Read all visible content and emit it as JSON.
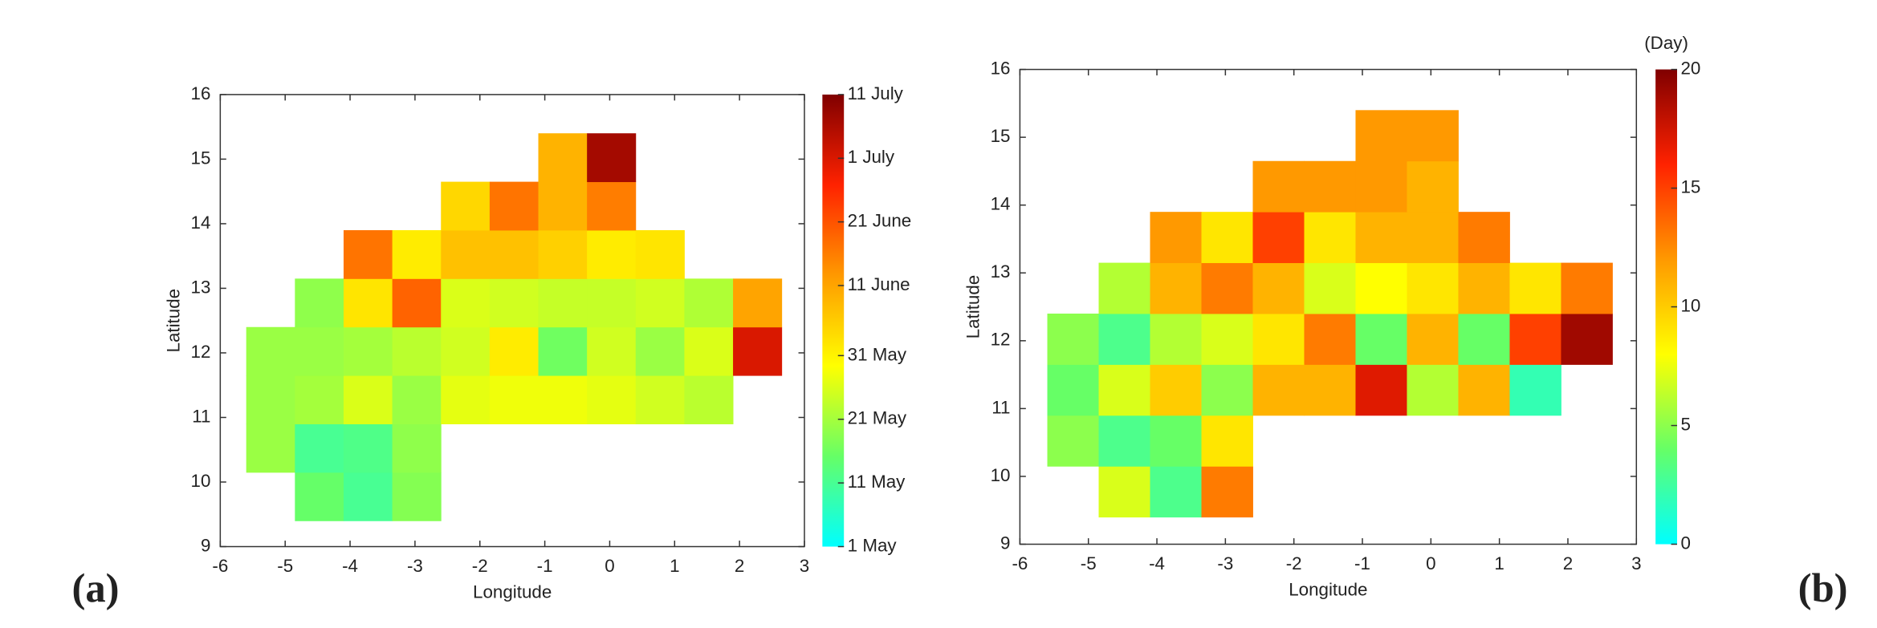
{
  "chart_data": [
    {
      "type": "heatmap",
      "panel_label": "(a)",
      "xlabel": "Longitude",
      "ylabel": "Latitude",
      "xlim": [
        -6,
        3
      ],
      "xticks": [
        -6,
        -5,
        -4,
        -3,
        -2,
        -1,
        0,
        1,
        2,
        3
      ],
      "ylim": [
        9,
        16
      ],
      "yticks": [
        9,
        10,
        11,
        12,
        13,
        14,
        15,
        16
      ],
      "x_edges": [
        -5.6,
        -4.85,
        -4.1,
        -3.35,
        -2.6,
        -1.85,
        -1.1,
        -0.35,
        0.4,
        1.15,
        1.9,
        2.65
      ],
      "y_edges": [
        9.4,
        10.15,
        10.9,
        11.65,
        12.4,
        13.15,
        13.9,
        14.65,
        15.4
      ],
      "z": [
        [
          null,
          135,
          131,
          138,
          null,
          null,
          null,
          null,
          null,
          null,
          null
        ],
        [
          140,
          131,
          132,
          139,
          null,
          null,
          null,
          null,
          null,
          null,
          null
        ],
        [
          140,
          141,
          146,
          140,
          147,
          148,
          148,
          147,
          145,
          143,
          null
        ],
        [
          140,
          140,
          141,
          143,
          145,
          152,
          136,
          145,
          140,
          146,
          182
        ],
        [
          null,
          139,
          153,
          170,
          146,
          145,
          144,
          144,
          145,
          142,
          162
        ],
        [
          null,
          null,
          168,
          152,
          158,
          158,
          156,
          152,
          153,
          null,
          null
        ],
        [
          null,
          null,
          null,
          null,
          155,
          168,
          160,
          167,
          null,
          null,
          null
        ],
        [
          null,
          null,
          null,
          null,
          null,
          null,
          160,
          188,
          null,
          null,
          null
        ]
      ],
      "zlim": [
        121,
        192
      ],
      "zticks": [
        {
          "value": 121,
          "label": "1 May"
        },
        {
          "value": 131,
          "label": "11 May"
        },
        {
          "value": 141,
          "label": "21 May"
        },
        {
          "value": 151,
          "label": "31 May"
        },
        {
          "value": 162,
          "label": "11 June"
        },
        {
          "value": 172,
          "label": "21 June"
        },
        {
          "value": 182,
          "label": "1 July"
        },
        {
          "value": 192,
          "label": "11 July"
        }
      ],
      "colormap": [
        "#00ffff",
        "#66ff66",
        "#ffff00",
        "#ff9900",
        "#ff2200",
        "#800000"
      ]
    },
    {
      "type": "heatmap",
      "panel_label": "(b)",
      "xlabel": "Longitude",
      "ylabel": "Latitude",
      "colorbar_label": "(Day)",
      "xlim": [
        -6,
        3
      ],
      "xticks": [
        -6,
        -5,
        -4,
        -3,
        -2,
        -1,
        0,
        1,
        2,
        3
      ],
      "ylim": [
        9,
        16
      ],
      "yticks": [
        9,
        10,
        11,
        12,
        13,
        14,
        15,
        16
      ],
      "x_edges": [
        -5.6,
        -4.85,
        -4.1,
        -3.35,
        -2.6,
        -1.85,
        -1.1,
        -0.35,
        0.4,
        1.15,
        1.9,
        2.65
      ],
      "y_edges": [
        9.4,
        10.15,
        10.9,
        11.65,
        12.4,
        13.15,
        13.9,
        14.65,
        15.4
      ],
      "z": [
        [
          null,
          7,
          3,
          13,
          null,
          null,
          null,
          null,
          null,
          null,
          null
        ],
        [
          5,
          3,
          4,
          9,
          null,
          null,
          null,
          null,
          null,
          null,
          null
        ],
        [
          4,
          7,
          10,
          5,
          11,
          11,
          17,
          6,
          11,
          2,
          null
        ],
        [
          5,
          3,
          6,
          7,
          9,
          13,
          4,
          11,
          4,
          15,
          19
        ],
        [
          null,
          6,
          11,
          13,
          11,
          7,
          8,
          9,
          11,
          9,
          13
        ],
        [
          null,
          null,
          12,
          9,
          15,
          9,
          11,
          11,
          13,
          null,
          null
        ],
        [
          null,
          null,
          null,
          null,
          12,
          12,
          12,
          11,
          null,
          null,
          null
        ],
        [
          null,
          null,
          null,
          null,
          null,
          null,
          12,
          12,
          null,
          null,
          null
        ]
      ],
      "zlim": [
        0,
        20
      ],
      "zticks": [
        0,
        5,
        10,
        15,
        20
      ],
      "colormap": [
        "#00ffff",
        "#66ff66",
        "#ffff00",
        "#ff9900",
        "#ff2200",
        "#800000"
      ]
    }
  ]
}
